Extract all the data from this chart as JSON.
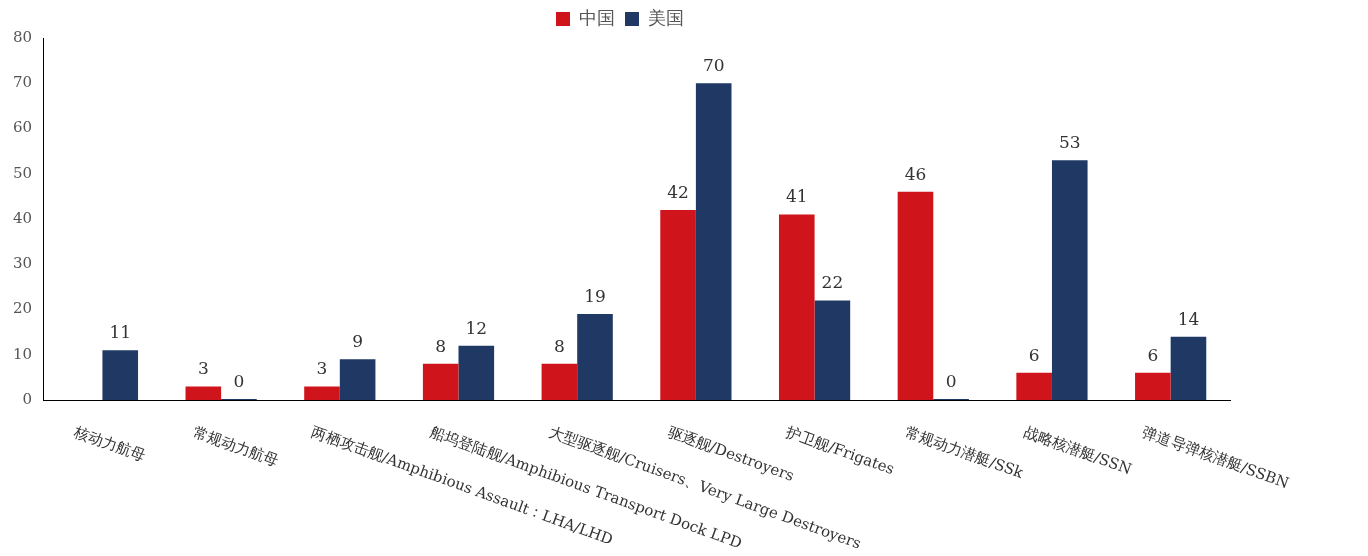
{
  "chart_data": {
    "type": "bar",
    "categories": [
      "核动力航母",
      "常规动力航母",
      "两栖攻击舰/Amphibious Assault：LHA/LHD",
      "船坞登陆舰/Amphibious Transport Dock LPD",
      "大型驱逐舰/Cruisers、Very Large Destroyers",
      "驱逐舰/Destroyers",
      "护卫舰/Frigates",
      "常规动力潜艇/SSk",
      "战略核潜艇/SSN",
      "弹道导弹核潜艇/SSBN"
    ],
    "series": [
      {
        "name": "中国",
        "color": "#d0141c",
        "values": [
          null,
          3,
          3,
          8,
          8,
          42,
          41,
          46,
          6,
          6
        ]
      },
      {
        "name": "美国",
        "color": "#1f3864",
        "values": [
          11,
          0,
          9,
          12,
          19,
          70,
          22,
          0,
          53,
          14
        ]
      }
    ],
    "ylim": [
      0,
      80
    ],
    "yticks": [
      0,
      10,
      20,
      30,
      40,
      50,
      60,
      70,
      80
    ],
    "grid": false,
    "legend": "top",
    "data_labels": true
  }
}
